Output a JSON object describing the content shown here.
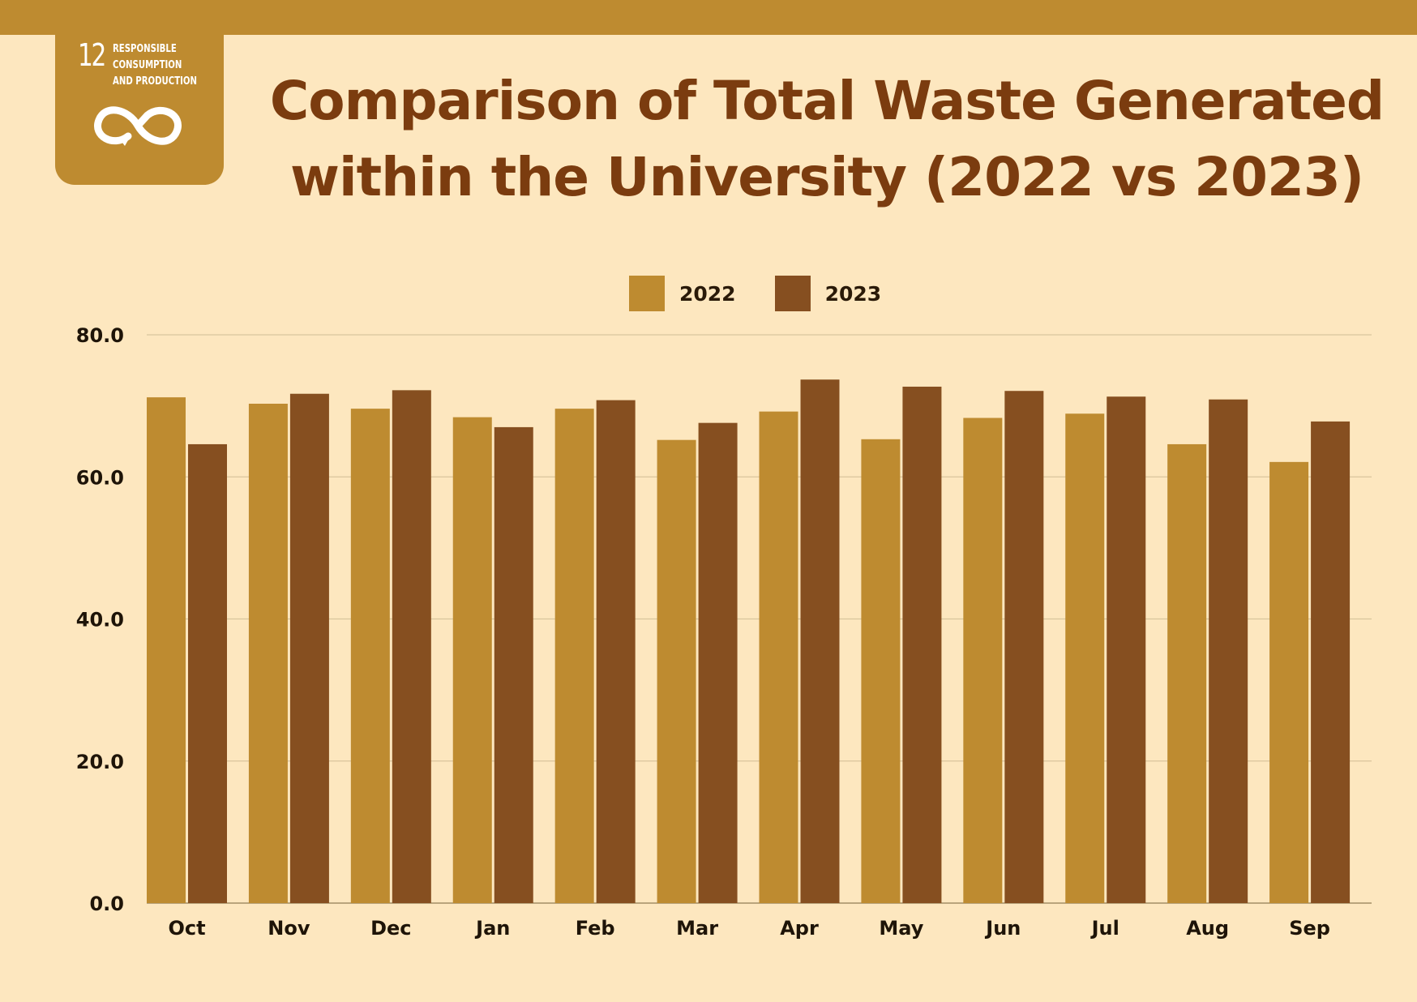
{
  "header": {
    "title_line1": "Comparison of Total Waste Generated",
    "title_line2": "within the University (2022 vs 2023)"
  },
  "sdg_badge": {
    "number": "12",
    "text": "RESPONSIBLE\nCONSUMPTION\nAND PRODUCTION",
    "icon": "infinity-loop-icon",
    "color": "#be8b30"
  },
  "colors": {
    "background": "#fde7bf",
    "band": "#be8b30",
    "series_2022": "#be8b30",
    "series_2023": "#864f20",
    "title": "#7b3c0f",
    "grid": "#d9c59d"
  },
  "chart_data": {
    "type": "bar",
    "title": "Comparison of Total Waste Generated within the University (2022 vs 2023)",
    "xlabel": "",
    "ylabel": "",
    "categories": [
      "Oct",
      "Nov",
      "Dec",
      "Jan",
      "Feb",
      "Mar",
      "Apr",
      "May",
      "Jun",
      "Jul",
      "Aug",
      "Sep"
    ],
    "series": [
      {
        "name": "2022",
        "color": "#be8b30",
        "values": [
          71.2,
          70.3,
          69.6,
          68.4,
          69.6,
          65.2,
          69.2,
          65.3,
          68.3,
          68.9,
          64.6,
          62.1
        ]
      },
      {
        "name": "2023",
        "color": "#864f20",
        "values": [
          64.6,
          71.7,
          72.2,
          67.0,
          70.8,
          67.6,
          73.7,
          72.7,
          72.1,
          71.3,
          70.9,
          67.8
        ]
      }
    ],
    "ylim": [
      0,
      80
    ],
    "yticks": [
      "0.0",
      "20.0",
      "40.0",
      "60.0",
      "80.0"
    ],
    "grid": true,
    "legend": "top-center"
  }
}
